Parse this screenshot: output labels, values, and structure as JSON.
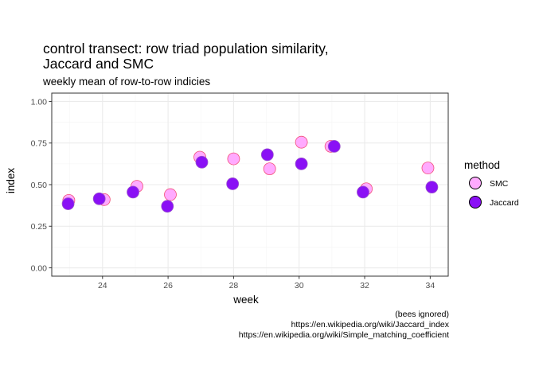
{
  "chart_data": {
    "type": "scatter",
    "title_lines": [
      "control transect: row triad population similarity,",
      "Jaccard and SMC"
    ],
    "subtitle": "weekly mean of row-to-row indicies",
    "xlabel": "week",
    "ylabel": "index",
    "xlim": [
      22.45,
      34.55
    ],
    "ylim": [
      -0.05,
      1.05
    ],
    "x_ticks": [
      24,
      26,
      28,
      30,
      32,
      34
    ],
    "x_tick_labels": [
      "24",
      "26",
      "28",
      "30",
      "32",
      "34"
    ],
    "y_ticks": [
      0,
      0.25,
      0.5,
      0.75,
      1
    ],
    "y_tick_labels": [
      "0.00",
      "0.25",
      "0.50",
      "0.75",
      "1.00"
    ],
    "grid": true,
    "legend": {
      "title": "method",
      "placement": "right"
    },
    "series": [
      {
        "name": "SMC",
        "fill": "#ffaaff",
        "stroke": "#f24f7a",
        "points": [
          {
            "x": 22.97,
            "y": 0.405
          },
          {
            "x": 24.05,
            "y": 0.41
          },
          {
            "x": 25.05,
            "y": 0.49
          },
          {
            "x": 26.07,
            "y": 0.44
          },
          {
            "x": 26.97,
            "y": 0.665
          },
          {
            "x": 28.0,
            "y": 0.655
          },
          {
            "x": 29.1,
            "y": 0.595
          },
          {
            "x": 30.07,
            "y": 0.755
          },
          {
            "x": 30.97,
            "y": 0.73
          },
          {
            "x": 32.05,
            "y": 0.475
          },
          {
            "x": 33.93,
            "y": 0.6
          }
        ]
      },
      {
        "name": "Jaccard",
        "fill": "#8a10f5",
        "stroke": "#9a55cc",
        "points": [
          {
            "x": 22.95,
            "y": 0.385
          },
          {
            "x": 23.9,
            "y": 0.415
          },
          {
            "x": 24.93,
            "y": 0.455
          },
          {
            "x": 25.98,
            "y": 0.37
          },
          {
            "x": 27.03,
            "y": 0.635
          },
          {
            "x": 27.97,
            "y": 0.505
          },
          {
            "x": 29.03,
            "y": 0.68
          },
          {
            "x": 30.07,
            "y": 0.625
          },
          {
            "x": 31.07,
            "y": 0.73
          },
          {
            "x": 31.95,
            "y": 0.455
          },
          {
            "x": 34.05,
            "y": 0.485
          }
        ]
      }
    ],
    "caption_lines": [
      "(bees ignored)",
      "https://en.wikipedia.org/wiki/Jaccard_index",
      "https://en.wikipedia.org/wiki/Simple_matching_coefficient"
    ],
    "colors": {
      "panel_border": "#333333",
      "grid_major": "#ebebeb",
      "grid_minor": "#f5f5f5",
      "tick": "#333333"
    }
  }
}
